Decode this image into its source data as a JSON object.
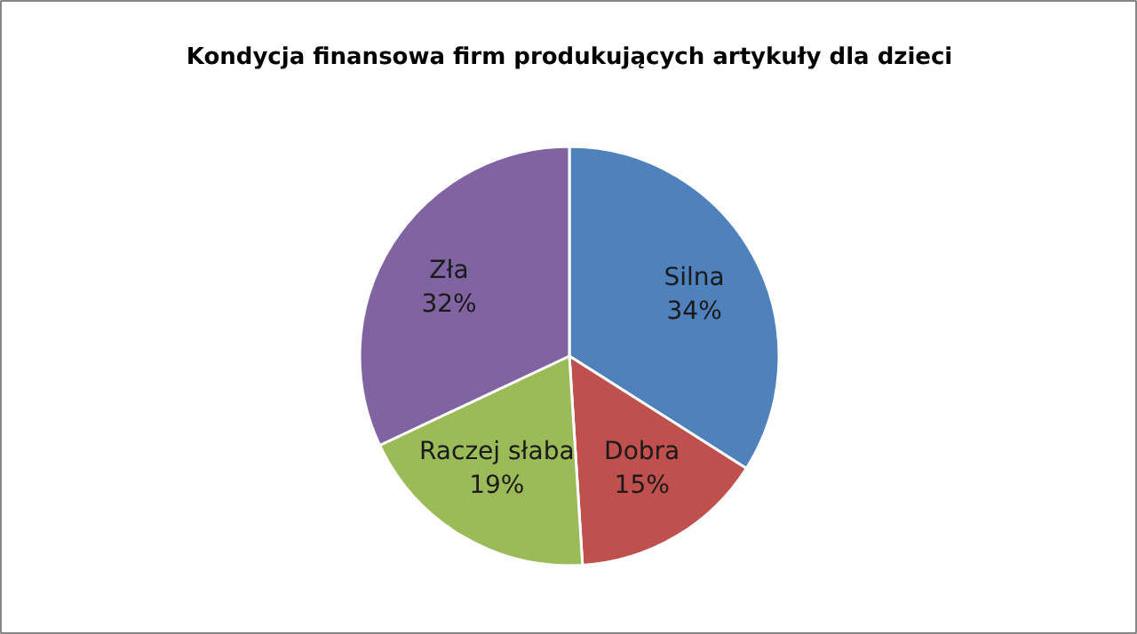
{
  "chart_data": {
    "type": "pie",
    "title": "Kondycja finansowa firm produkujących artykuły dla dzieci",
    "categories": [
      "Silna",
      "Dobra",
      "Raczej słaba",
      "Zła"
    ],
    "values": [
      34,
      15,
      19,
      32
    ],
    "value_labels": [
      "34%",
      "15%",
      "19%",
      "32%"
    ],
    "colors": [
      "#4f81bd",
      "#c0504d",
      "#9bbb59",
      "#8064a2"
    ]
  }
}
